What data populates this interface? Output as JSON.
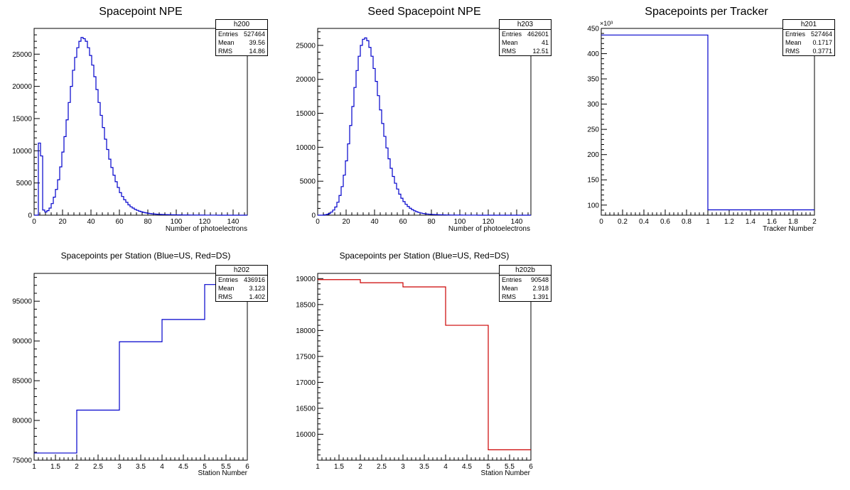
{
  "chart_data": [
    {
      "id": "h200",
      "type": "histogram",
      "title": "Spacepoint NPE",
      "xlabel": "Number of photoelectrons",
      "ylabel": "",
      "xlim": [
        0,
        150
      ],
      "ylim": [
        0,
        29000
      ],
      "xticks": [
        0,
        20,
        40,
        60,
        80,
        100,
        120,
        140
      ],
      "yticks": [
        0,
        5000,
        10000,
        15000,
        20000,
        25000
      ],
      "line_color": "#0000cc",
      "bin_width": 1.5,
      "values": [
        0,
        0,
        11200,
        9200,
        800,
        500,
        700,
        1100,
        1800,
        2800,
        4000,
        5500,
        7500,
        9800,
        12200,
        14800,
        17500,
        20000,
        22500,
        24500,
        26000,
        27000,
        27600,
        27400,
        27000,
        26000,
        24800,
        23300,
        21500,
        19500,
        17500,
        15500,
        13600,
        11800,
        10200,
        8700,
        7400,
        6200,
        5200,
        4300,
        3500,
        2900,
        2400,
        2000,
        1600,
        1300,
        1100,
        900,
        750,
        620,
        520,
        430,
        360,
        300,
        250,
        210,
        180,
        150,
        130,
        110,
        100,
        90,
        80,
        70,
        60,
        55,
        50,
        45,
        40,
        35,
        30,
        28,
        25,
        22,
        20,
        18,
        16,
        14,
        12,
        10,
        9,
        8,
        7,
        6,
        5,
        5,
        4,
        4,
        3,
        3,
        3,
        2,
        2,
        2,
        2,
        1,
        1,
        1,
        1,
        1
      ],
      "stats": {
        "name": "h200",
        "entries": "527464",
        "mean": "39.56",
        "rms": "14.86"
      }
    },
    {
      "id": "h203",
      "type": "histogram",
      "title": "Seed Spacepoint NPE",
      "xlabel": "Number of photoelectrons",
      "ylabel": "",
      "xlim": [
        0,
        150
      ],
      "ylim": [
        0,
        27500
      ],
      "xticks": [
        0,
        20,
        40,
        60,
        80,
        100,
        120,
        140
      ],
      "yticks": [
        0,
        5000,
        10000,
        15000,
        20000,
        25000
      ],
      "line_color": "#0000cc",
      "bin_width": 1.5,
      "values": [
        0,
        0,
        0,
        50,
        120,
        250,
        450,
        750,
        1200,
        1900,
        2900,
        4200,
        5900,
        8000,
        10500,
        13200,
        16000,
        18800,
        21300,
        23400,
        25000,
        25900,
        26100,
        25700,
        24700,
        23400,
        21600,
        19700,
        17600,
        15500,
        13500,
        11600,
        9900,
        8300,
        6900,
        5700,
        4700,
        3850,
        3100,
        2500,
        2000,
        1600,
        1280,
        1020,
        810,
        640,
        510,
        400,
        320,
        255,
        205,
        165,
        135,
        110,
        90,
        75,
        62,
        52,
        44,
        37,
        31,
        26,
        22,
        19,
        16,
        14,
        12,
        10,
        9,
        8,
        7,
        6,
        5,
        4,
        4,
        3,
        3,
        2,
        2,
        2,
        1,
        1,
        1,
        1,
        1,
        0,
        0,
        0,
        0,
        0,
        0,
        0,
        0,
        0,
        0,
        0,
        0,
        0,
        0,
        0
      ],
      "stats": {
        "name": "h203",
        "entries": "462601",
        "mean": "41",
        "rms": "12.51"
      }
    },
    {
      "id": "h201",
      "type": "histogram",
      "title": "Spacepoints per Tracker",
      "xlabel": "Tracker Number",
      "ylabel": "",
      "y_multiplier_label": "×10³",
      "xlim": [
        0,
        2
      ],
      "ylim": [
        80,
        450
      ],
      "xticks": [
        0,
        0.2,
        0.4,
        0.6,
        0.8,
        1,
        1.2,
        1.4,
        1.6,
        1.8,
        2
      ],
      "yticks": [
        100,
        150,
        200,
        250,
        300,
        350,
        400,
        450
      ],
      "line_color": "#0000cc",
      "bin_edges": [
        0,
        1,
        2
      ],
      "values": [
        436.9,
        90.5
      ],
      "stats": {
        "name": "h201",
        "entries": "527464",
        "mean": "0.1717",
        "rms": "0.3771"
      }
    },
    {
      "id": "h202",
      "type": "histogram",
      "title": "Spacepoints per Station (Blue=US, Red=DS)",
      "xlabel": "Station Number",
      "ylabel": "",
      "xlim": [
        1,
        6
      ],
      "ylim": [
        75000,
        98500
      ],
      "xticks": [
        1,
        1.5,
        2,
        2.5,
        3,
        3.5,
        4,
        4.5,
        5,
        5.5,
        6
      ],
      "yticks": [
        75000,
        80000,
        85000,
        90000,
        95000
      ],
      "line_color": "#0000cc",
      "bin_edges": [
        1,
        2,
        3,
        4,
        5,
        6
      ],
      "values": [
        75900,
        81300,
        89900,
        92700,
        97100
      ],
      "stats": {
        "name": "h202",
        "entries": "436916",
        "mean": "3.123",
        "rms": "1.402"
      }
    },
    {
      "id": "h202b",
      "type": "histogram",
      "title": "Spacepoints per Station (Blue=US, Red=DS)",
      "xlabel": "Station Number",
      "ylabel": "",
      "xlim": [
        1,
        6
      ],
      "ylim": [
        15500,
        19100
      ],
      "xticks": [
        1,
        1.5,
        2,
        2.5,
        3,
        3.5,
        4,
        4.5,
        5,
        5.5,
        6
      ],
      "yticks": [
        16000,
        16500,
        17000,
        17500,
        18000,
        18500,
        19000
      ],
      "line_color": "#cc0000",
      "bin_edges": [
        1,
        2,
        3,
        4,
        5,
        6
      ],
      "values": [
        18980,
        18920,
        18840,
        18100,
        15700
      ],
      "stats": {
        "name": "h202b",
        "entries": "90548",
        "mean": "2.918",
        "rms": "1.391"
      }
    }
  ],
  "stat_labels": {
    "entries": "Entries",
    "mean": "Mean",
    "rms": "RMS"
  }
}
